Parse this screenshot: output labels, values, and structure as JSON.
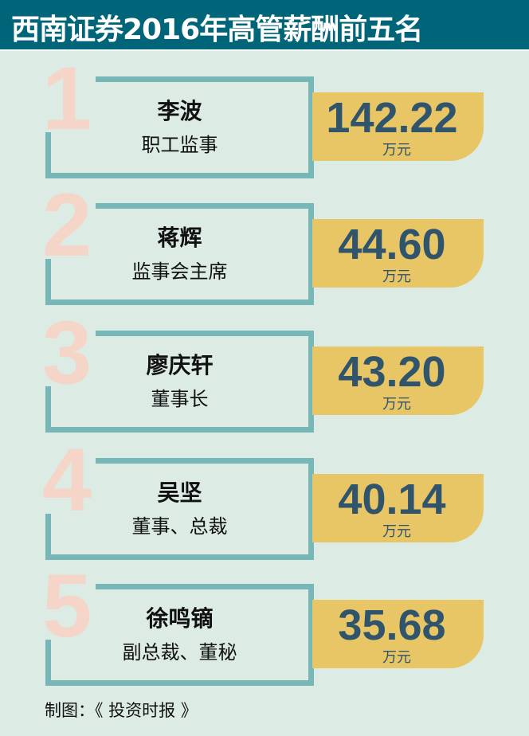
{
  "header": {
    "title": "西南证券2016年高管薪酬前五名"
  },
  "items": [
    {
      "rank": "1",
      "name": "李波",
      "role": "职工监事",
      "value": "142.22",
      "unit": "万元"
    },
    {
      "rank": "2",
      "name": "蒋辉",
      "role": "监事会主席",
      "value": "44.60",
      "unit": "万元"
    },
    {
      "rank": "3",
      "name": "廖庆轩",
      "role": "董事长",
      "value": "43.20",
      "unit": "万元"
    },
    {
      "rank": "4",
      "name": "吴坚",
      "role": "董事、总裁",
      "value": "40.14",
      "unit": "万元"
    },
    {
      "rank": "5",
      "name": "徐鸣镝",
      "role": "副总裁、董秘",
      "value": "35.68",
      "unit": "万元"
    }
  ],
  "footer": {
    "credit": "制图：《 投资时报 》"
  },
  "colors": {
    "header": "#006578",
    "background": "#dcebe4",
    "frame": "#77b7b8",
    "rank": "#f5d5c8",
    "badge": "#e8c565",
    "value": "#30546c"
  }
}
